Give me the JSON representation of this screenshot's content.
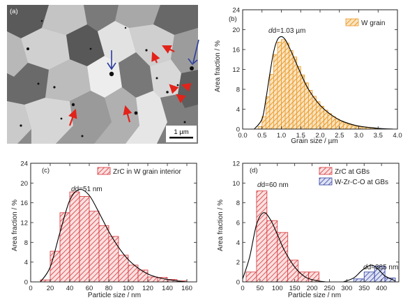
{
  "micrograph": {
    "panel_label": "(a)",
    "scale_label": "1 µm",
    "arrow_colors": {
      "red": "#e2231a",
      "blue": "#2c3e9e"
    }
  },
  "chart_data": [
    {
      "panel": "(b)",
      "type": "bar",
      "xlabel": "Grain size / µm",
      "ylabel": "Area fraction / %",
      "xlim": [
        0,
        4.0
      ],
      "ylim": [
        0,
        24
      ],
      "xticks": [
        "0.0",
        "0.5",
        "1.0",
        "1.5",
        "2.0",
        "2.5",
        "3.0",
        "3.5",
        "4.0"
      ],
      "yticks": [
        "0",
        "4",
        "8",
        "12",
        "16",
        "20",
        "24"
      ],
      "bin_width": 0.1,
      "series": [
        {
          "name": "W grain",
          "color": "#e89a28",
          "bins": [
            0.4,
            0.5,
            0.6,
            0.7,
            0.8,
            0.9,
            1.0,
            1.1,
            1.2,
            1.3,
            1.4,
            1.5,
            1.6,
            1.7,
            1.8,
            1.9,
            2.0,
            2.1,
            2.2,
            2.3,
            2.4,
            2.5,
            2.6,
            2.7,
            2.8,
            2.9,
            3.0,
            3.1,
            3.2,
            3.3,
            3.4
          ],
          "values": [
            0.5,
            2.5,
            6.5,
            11.0,
            15.0,
            17.5,
            18.0,
            17.3,
            15.8,
            14.5,
            12.6,
            10.9,
            9.3,
            7.8,
            6.6,
            5.5,
            4.6,
            3.8,
            3.1,
            2.5,
            2.0,
            1.6,
            1.3,
            1.0,
            0.8,
            0.6,
            0.5,
            0.4,
            0.3,
            0.2,
            0.1
          ]
        }
      ],
      "fit_curve": {
        "x": [
          0.3,
          0.5,
          0.6,
          0.7,
          0.8,
          0.9,
          1.0,
          1.1,
          1.2,
          1.3,
          1.5,
          1.7,
          2.0,
          2.3,
          2.6,
          3.0,
          3.5,
          3.9
        ],
        "y": [
          0,
          2.0,
          6.0,
          11.0,
          15.5,
          18.0,
          18.6,
          18.0,
          16.5,
          14.8,
          11.2,
          8.0,
          4.8,
          2.8,
          1.5,
          0.6,
          0.15,
          0
        ]
      },
      "annotation": "d=1.03 µm"
    },
    {
      "panel": "(c)",
      "type": "bar",
      "xlabel": "Particle size / nm",
      "ylabel": "Area fraction / %",
      "xlim": [
        0,
        170
      ],
      "ylim": [
        0,
        24
      ],
      "xticks": [
        "0",
        "20",
        "40",
        "60",
        "80",
        "100",
        "120",
        "140",
        "160"
      ],
      "yticks": [
        "0",
        "4",
        "8",
        "12",
        "16",
        "20",
        "24"
      ],
      "bin_width": 10,
      "series": [
        {
          "name": "ZrC in W grain interior",
          "color": "#d6353a",
          "bins": [
            10,
            20,
            30,
            40,
            50,
            60,
            70,
            80,
            90,
            100,
            110,
            120,
            130,
            140,
            150
          ],
          "values": [
            0.4,
            6.2,
            14.0,
            18.2,
            17.3,
            14.3,
            11.4,
            9.2,
            5.4,
            3.4,
            2.4,
            1.0,
            0.9,
            0.5,
            0.2
          ]
        }
      ],
      "fit_curve": {
        "x": [
          10,
          20,
          30,
          40,
          50,
          60,
          70,
          80,
          90,
          100,
          110,
          120,
          130,
          140,
          150,
          160
        ],
        "y": [
          0,
          3.0,
          10.0,
          16.5,
          18.7,
          17.5,
          14.0,
          10.2,
          7.0,
          4.5,
          2.8,
          1.6,
          0.9,
          0.5,
          0.2,
          0
        ]
      },
      "annotation": "d=51 nm"
    },
    {
      "panel": "(d)",
      "type": "bar",
      "xlabel": "Particle size / nm",
      "ylabel": "Area fraction / %",
      "xlim": [
        0,
        450
      ],
      "ylim": [
        0,
        12
      ],
      "xticks": [
        "0",
        "50",
        "100",
        "150",
        "200",
        "250",
        "300",
        "350",
        "400"
      ],
      "yticks": [
        "0",
        "2",
        "4",
        "6",
        "8",
        "10",
        "12"
      ],
      "bin_width": 30,
      "series": [
        {
          "name": "ZrC at GBs",
          "color": "#d6353a",
          "bins": [
            10,
            40,
            70,
            100,
            130,
            160,
            190
          ],
          "values": [
            1.0,
            9.2,
            6.2,
            5.0,
            2.2,
            1.0,
            1.0
          ]
        },
        {
          "name": "W-Zr-C-O at GBs",
          "color": "#2c3e9e",
          "bins": [
            320,
            350,
            380,
            410
          ],
          "values": [
            0.3,
            1.0,
            1.6,
            0.4
          ]
        }
      ],
      "fit_curve": {
        "x": [
          0,
          20,
          40,
          60,
          80,
          100,
          120,
          150,
          180,
          210,
          240
        ],
        "y": [
          0.3,
          2.5,
          5.8,
          7.0,
          6.3,
          4.8,
          3.2,
          1.5,
          0.5,
          0.15,
          0
        ]
      },
      "fit_curve_2": {
        "x": [
          290,
          320,
          345,
          370,
          390,
          410,
          440
        ],
        "y": [
          0,
          0.4,
          1.2,
          1.7,
          1.3,
          0.6,
          0.1
        ]
      },
      "annotations": [
        "d=60 nm",
        "d=385 nm"
      ]
    }
  ]
}
